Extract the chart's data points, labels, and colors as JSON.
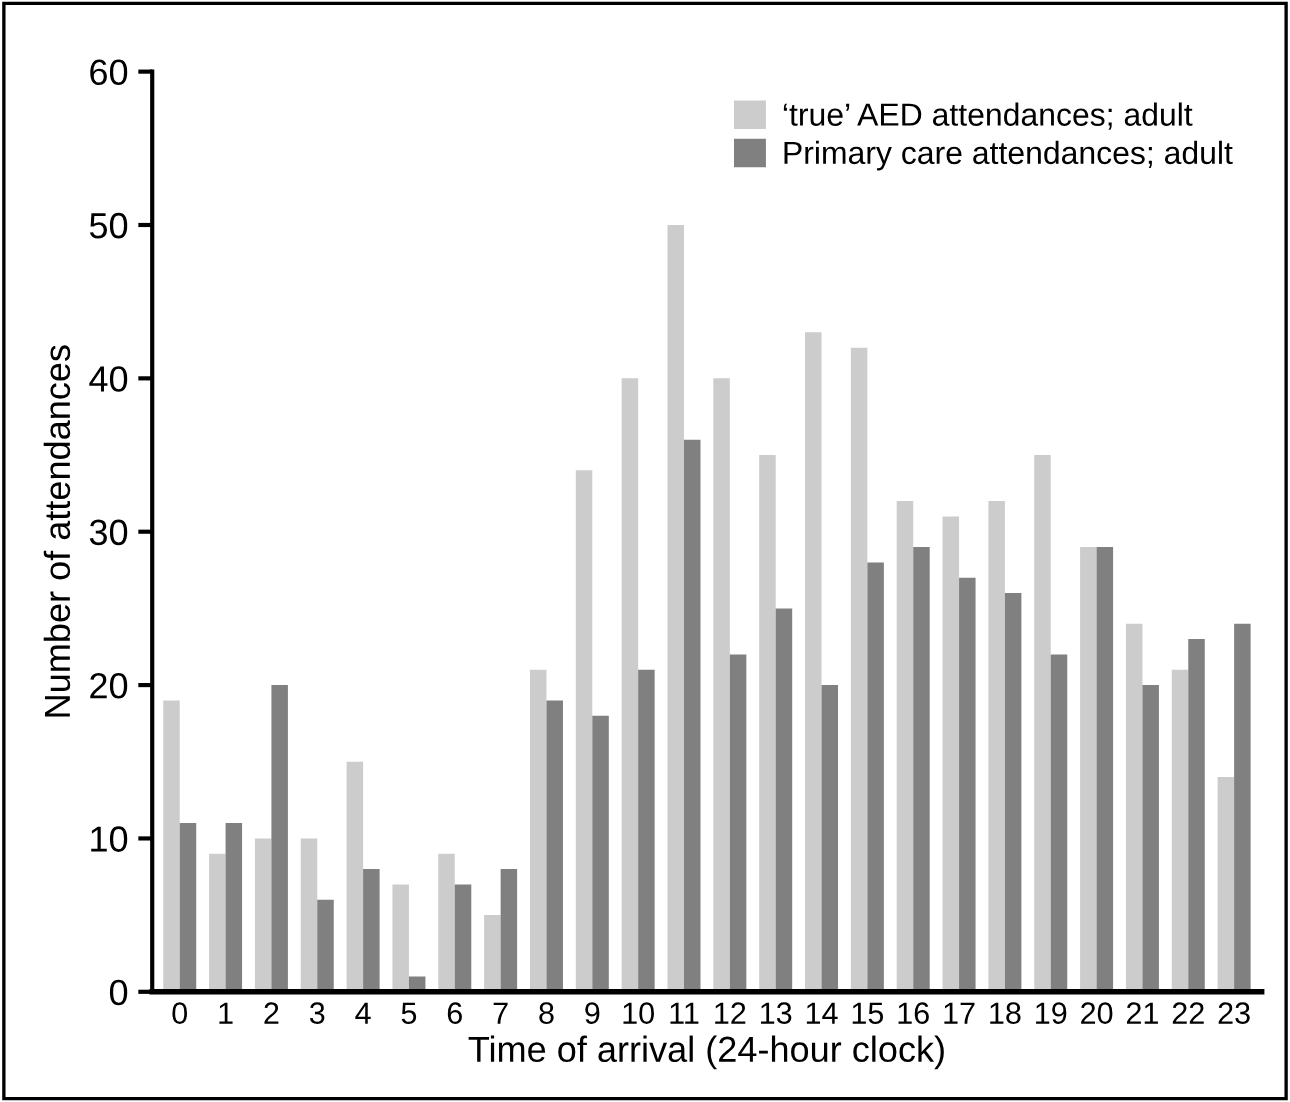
{
  "chart_data": {
    "type": "bar",
    "xlabel": "Time of arrival (24-hour clock)",
    "ylabel": "Number of attendances",
    "categories": [
      "0",
      "1",
      "2",
      "3",
      "4",
      "5",
      "6",
      "7",
      "8",
      "9",
      "10",
      "11",
      "12",
      "13",
      "14",
      "15",
      "16",
      "17",
      "18",
      "19",
      "20",
      "21",
      "22",
      "23"
    ],
    "series": [
      {
        "name": "‘true’ AED attendances; adult",
        "color": "#cccccc",
        "values": [
          19,
          9,
          10,
          10,
          15,
          7,
          9,
          5,
          21,
          34,
          40,
          50,
          40,
          35,
          43,
          42,
          32,
          31,
          32,
          35,
          29,
          24,
          21,
          14
        ]
      },
      {
        "name": "Primary care attendances; adult",
        "color": "#808080",
        "values": [
          11,
          11,
          20,
          6,
          8,
          1,
          7,
          8,
          19,
          18,
          21,
          36,
          22,
          25,
          20,
          28,
          29,
          27,
          26,
          22,
          29,
          20,
          23,
          24
        ]
      }
    ],
    "ylim": [
      0,
      60
    ],
    "yticks": [
      0,
      10,
      20,
      30,
      40,
      50,
      60
    ],
    "grid": false,
    "legend": "top right"
  }
}
